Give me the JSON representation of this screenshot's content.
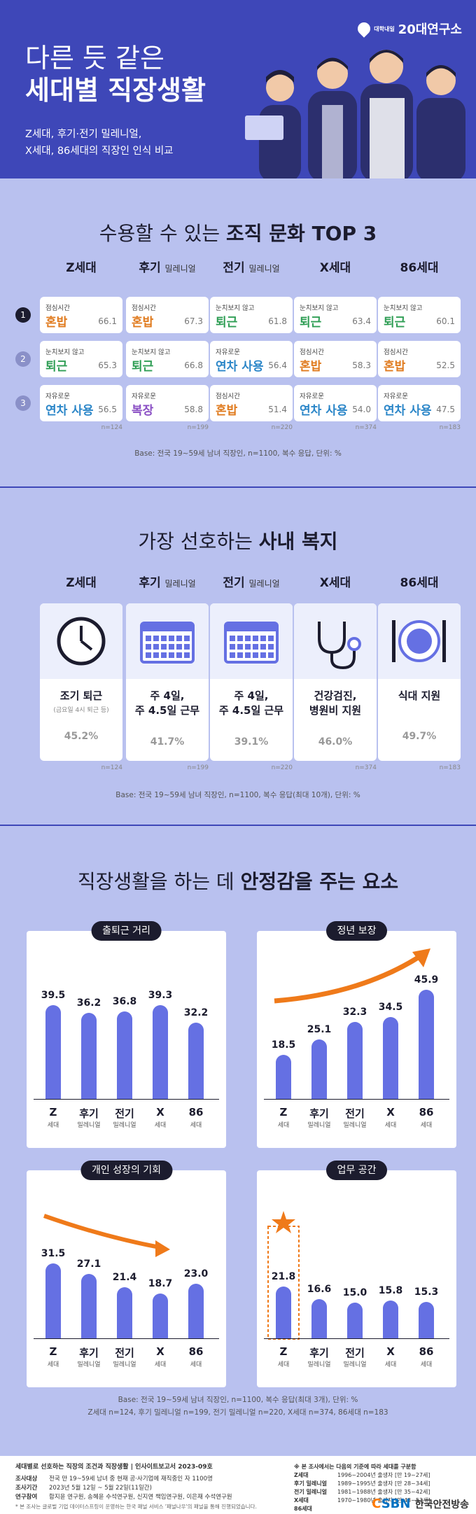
{
  "hero": {
    "logo_small": "대학내일",
    "logo_main": "20대연구소",
    "title_line1": "다른 듯 같은",
    "title_line2": "세대별 직장생활",
    "sub_line1": "Z세대, 후기·전기 밀레니얼,",
    "sub_line2": "X세대, 86세대의 직장인 인식 비교"
  },
  "generations": [
    {
      "name": "Z세대",
      "suffix": ""
    },
    {
      "name": "후기",
      "suffix": "밀레니얼"
    },
    {
      "name": "전기",
      "suffix": "밀레니얼"
    },
    {
      "name": "X세대",
      "suffix": ""
    },
    {
      "name": "86세대",
      "suffix": ""
    }
  ],
  "culture": {
    "title_normal": "수용할 수 있는 ",
    "title_bold": "조직 문화 TOP 3",
    "ranks": [
      "1",
      "2",
      "3"
    ],
    "columns": [
      {
        "n": "n=124",
        "items": [
          {
            "small": "점심시간",
            "big": "혼밥",
            "pct": "66.1",
            "color": "#e07b1f"
          },
          {
            "small": "눈치보지 않고",
            "big": "퇴근",
            "pct": "65.3",
            "color": "#2f9e55"
          },
          {
            "small": "자유로운",
            "big": "연차 사용",
            "pct": "56.5",
            "color": "#2b86c8"
          }
        ]
      },
      {
        "n": "n=199",
        "items": [
          {
            "small": "점심시간",
            "big": "혼밥",
            "pct": "67.3",
            "color": "#e07b1f"
          },
          {
            "small": "눈치보지 않고",
            "big": "퇴근",
            "pct": "66.8",
            "color": "#2f9e55"
          },
          {
            "small": "자유로운",
            "big": "복장",
            "pct": "58.8",
            "color": "#8a4fc4"
          }
        ]
      },
      {
        "n": "n=220",
        "items": [
          {
            "small": "눈치보지 않고",
            "big": "퇴근",
            "pct": "61.8",
            "color": "#2f9e55"
          },
          {
            "small": "자유로운",
            "big": "연차 사용",
            "pct": "56.4",
            "color": "#2b86c8"
          },
          {
            "small": "점심시간",
            "big": "혼밥",
            "pct": "51.4",
            "color": "#e07b1f"
          }
        ]
      },
      {
        "n": "n=374",
        "items": [
          {
            "small": "눈치보지 않고",
            "big": "퇴근",
            "pct": "63.4",
            "color": "#2f9e55"
          },
          {
            "small": "점심시간",
            "big": "혼밥",
            "pct": "58.3",
            "color": "#e07b1f"
          },
          {
            "small": "자유로운",
            "big": "연차 사용",
            "pct": "54.0",
            "color": "#2b86c8"
          }
        ]
      },
      {
        "n": "n=183",
        "items": [
          {
            "small": "눈치보지 않고",
            "big": "퇴근",
            "pct": "60.1",
            "color": "#2f9e55"
          },
          {
            "small": "점심시간",
            "big": "혼밥",
            "pct": "52.5",
            "color": "#e07b1f"
          },
          {
            "small": "자유로운",
            "big": "연차 사용",
            "pct": "47.5",
            "color": "#2b86c8"
          }
        ]
      }
    ],
    "base": "Base: 전국 19~59세 남녀 직장인, n=1100, 복수 응답, 단위: %"
  },
  "welfare": {
    "title_normal": "가장 선호하는 ",
    "title_bold": "사내 복지",
    "cards": [
      {
        "icon": "clock-icon",
        "line1": "조기 퇴근",
        "line2": "",
        "note": "(금요일 4시 퇴근 등)",
        "pct": "45.2%",
        "n": "n=124"
      },
      {
        "icon": "calendar-icon",
        "line1": "주 4일,",
        "line2": "주 4.5일 근무",
        "note": "",
        "pct": "41.7%",
        "n": "n=199"
      },
      {
        "icon": "calendar-icon",
        "line1": "주 4일,",
        "line2": "주 4.5일 근무",
        "note": "",
        "pct": "39.1%",
        "n": "n=220"
      },
      {
        "icon": "stethoscope-icon",
        "line1": "건강검진,",
        "line2": "병원비 지원",
        "note": "",
        "pct": "46.0%",
        "n": "n=374"
      },
      {
        "icon": "cutlery-icon",
        "line1": "식대 지원",
        "line2": "",
        "note": "",
        "pct": "49.7%",
        "n": "n=183"
      }
    ],
    "base": "Base: 전국 19~59세 남녀 직장인, n=1100, 복수 응답(최대 10개), 단위: %"
  },
  "stability": {
    "title_normal1": "직장생활을 하는 데 ",
    "title_bold": "안정감을 주는 요소",
    "title_normal2": "",
    "x_labels": [
      {
        "main": "Z",
        "sub": "세대"
      },
      {
        "main": "후기",
        "sub": "밀레니얼"
      },
      {
        "main": "전기",
        "sub": "밀레니얼"
      },
      {
        "main": "X",
        "sub": "세대"
      },
      {
        "main": "86",
        "sub": "세대"
      }
    ],
    "base": "Base: 전국 19~59세 남녀 직장인, n=1100, 복수 응답(최대 3개), 단위: %",
    "base2": "Z세대 n=124, 후기 밀레니얼 n=199, 전기 밀레니얼 n=220, X세대 n=374, 86세대 n=183"
  },
  "chart_data": [
    {
      "type": "bar",
      "title": "출퇴근 거리",
      "categories": [
        "Z세대",
        "후기 밀레니얼",
        "전기 밀레니얼",
        "X세대",
        "86세대"
      ],
      "values": [
        39.5,
        36.2,
        36.8,
        39.3,
        32.2
      ],
      "ylim": [
        0,
        50
      ],
      "annotation": ""
    },
    {
      "type": "bar",
      "title": "정년 보장",
      "categories": [
        "Z세대",
        "후기 밀레니얼",
        "전기 밀레니얼",
        "X세대",
        "86세대"
      ],
      "values": [
        18.5,
        25.1,
        32.3,
        34.5,
        45.9
      ],
      "ylim": [
        0,
        50
      ],
      "annotation": "up-arrow"
    },
    {
      "type": "bar",
      "title": "개인 성장의 기회",
      "categories": [
        "Z세대",
        "후기 밀레니얼",
        "전기 밀레니얼",
        "X세대",
        "86세대"
      ],
      "values": [
        31.5,
        27.1,
        21.4,
        18.7,
        23.0
      ],
      "ylim": [
        0,
        50
      ],
      "annotation": "down-arrow"
    },
    {
      "type": "bar",
      "title": "업무 공간",
      "categories": [
        "Z세대",
        "후기 밀레니얼",
        "전기 밀레니얼",
        "X세대",
        "86세대"
      ],
      "values": [
        21.8,
        16.6,
        15.0,
        15.8,
        15.3
      ],
      "ylim": [
        0,
        50
      ],
      "annotation": "star-highlight-first"
    }
  ],
  "footer": {
    "title": "세대별로 선호하는 직장의 조건과 직장생활  |  인사이트보고서 2023-09호",
    "rows": [
      {
        "k": "조사대상",
        "v": "전국 만 19~59세 남녀 중 현재 공·사기업에 재직중인 자 1100명"
      },
      {
        "k": "조사기간",
        "v": "2023년 5월 12일 ~ 5월 22일(11일간)"
      },
      {
        "k": "연구참여",
        "v": "함지윤 연구원, 송혜윤 수석연구원, 신지연 책임연구원, 이은재 수석연구원"
      }
    ],
    "note": "* 본 조사는 글로벌 기업 데이터스프링이 운영하는 한국 패널 서비스 '패널나우'의 패널을 통해 진행되었습니다.",
    "right_title": "※ 본 조사에서는 다음의 기준에 따라 세대를 구분함",
    "gens": [
      {
        "k": "Z세대",
        "v": "1996~2004년 출생자 [만 19~27세]"
      },
      {
        "k": "후기 밀레니얼",
        "v": "1989~1995년 출생자 [만 28~34세]"
      },
      {
        "k": "전기 밀레니얼",
        "v": "1981~1988년 출생자 [만 35~42세]"
      },
      {
        "k": "X세대",
        "v": "1970~1980년 출생자 [만 43~53세]"
      },
      {
        "k": "86세대",
        "v": ""
      }
    ],
    "brand": "한국안전방송"
  },
  "colors": {
    "hero": "#3e47b8",
    "bg": "#b9c1ef",
    "bar": "#6570e3",
    "accent": "#ef7a1a"
  }
}
